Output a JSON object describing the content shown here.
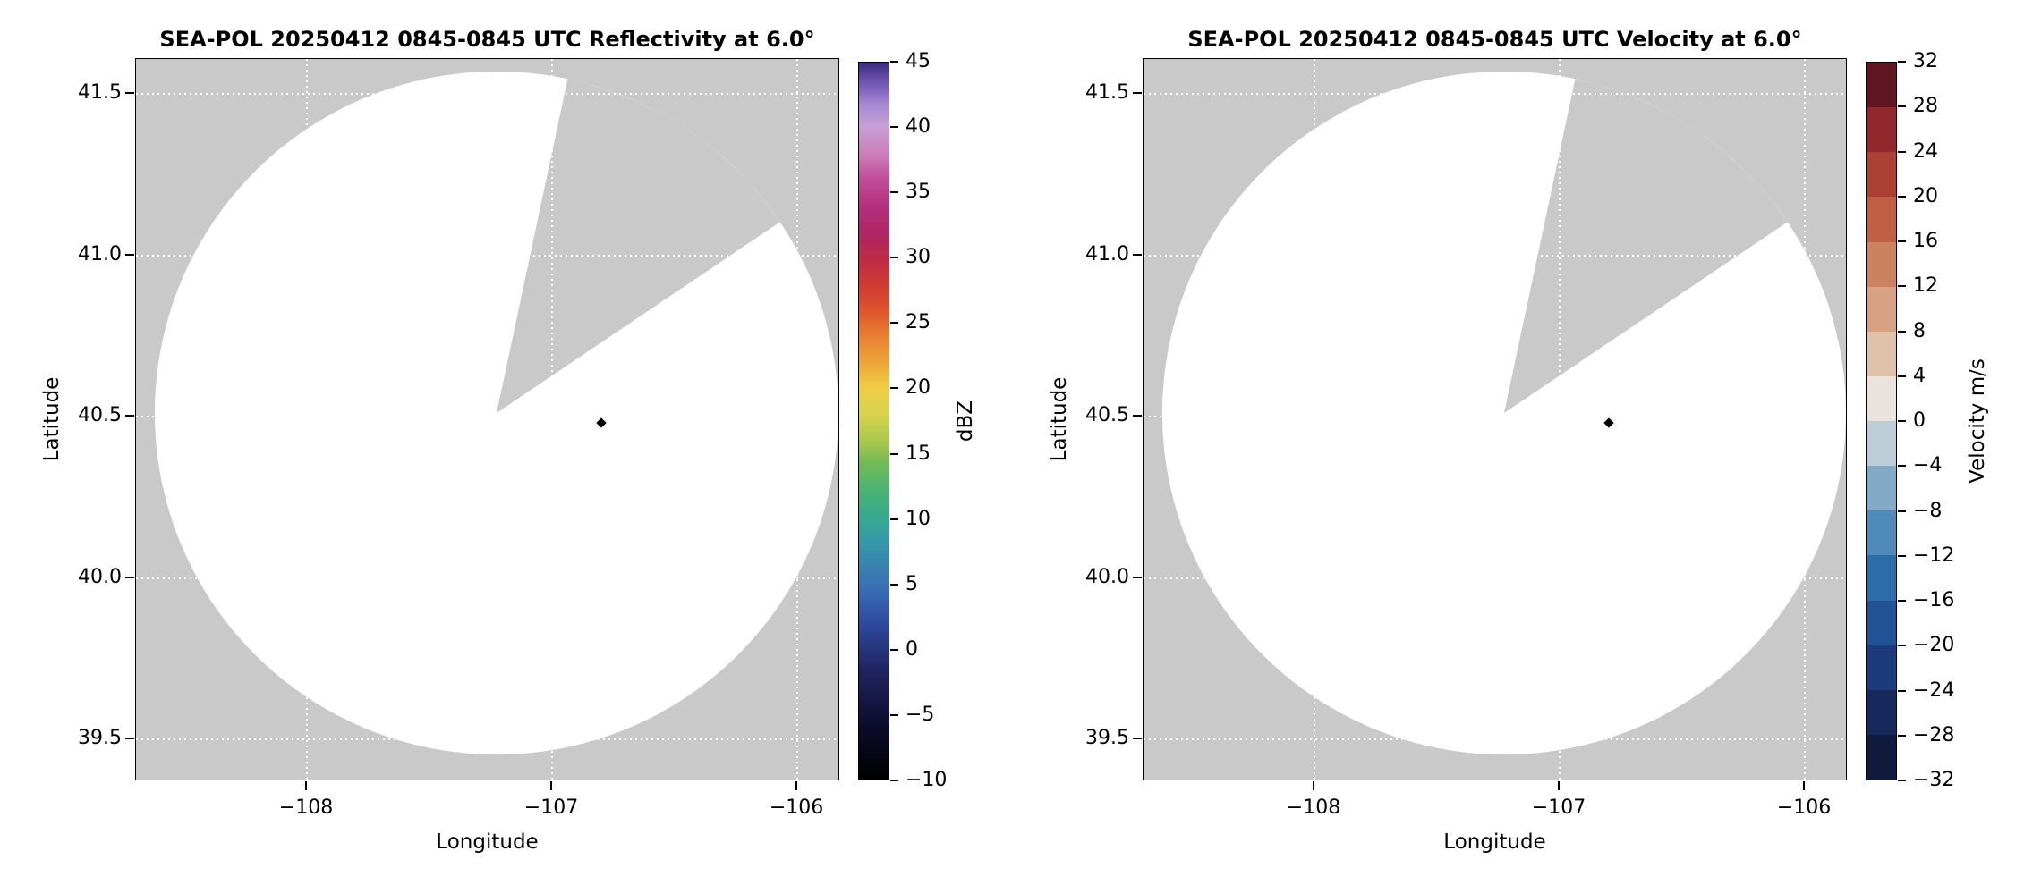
{
  "figure": {
    "background": "#ffffff",
    "nodata_gray": "#c9c9c9",
    "scan_area_white": "#ffffff",
    "grid_color": "#ffffff",
    "text_color": "#000000"
  },
  "chart_data": [
    {
      "type": "heatmap",
      "subtype": "radar-ppi",
      "title": "SEA-POL 20250412 0845-0845 UTC Reflectivity at 6.0°",
      "xlabel": "Longitude",
      "ylabel": "Latitude",
      "xlim": [
        -108.7,
        -105.82
      ],
      "ylim": [
        39.37,
        41.61
      ],
      "x_tick_values": [
        -108,
        -107,
        -106
      ],
      "x_tick_labels": [
        "−108",
        "−107",
        "−106"
      ],
      "y_tick_values": [
        41.5,
        41.0,
        40.5,
        40.0,
        39.5
      ],
      "y_tick_labels": [
        "41.5",
        "41.0",
        "40.5",
        "40.0",
        "39.5"
      ],
      "grid": true,
      "background_nodata_color": "#c9c9c9",
      "scan_area_color": "#ffffff",
      "radar_center": {
        "lon": -107.22,
        "lat": 40.51
      },
      "scan_radius_deg_lat": 1.06,
      "missing_sector_azimuth_deg": {
        "start_cw_from_north": 12,
        "end_cw_from_north": 56
      },
      "marker": {
        "lon": -106.8,
        "lat": 40.48,
        "shape": "diamond",
        "color": "#000000"
      },
      "echoes": [],
      "note": "Scan area blank: no reflectivity echoes above threshold are plotted",
      "colorbar": {
        "label": "dBZ",
        "min": -10,
        "max": 45,
        "style": "continuous",
        "tick_values": [
          45,
          40,
          35,
          30,
          25,
          20,
          15,
          10,
          5,
          0,
          -5,
          -10
        ],
        "tick_labels": [
          "45",
          "40",
          "35",
          "30",
          "25",
          "20",
          "15",
          "10",
          "5",
          "0",
          "−5",
          "−10"
        ],
        "gradient_stops": [
          {
            "p": 0,
            "c": "#000000"
          },
          {
            "p": 7,
            "c": "#0b0b28"
          },
          {
            "p": 15,
            "c": "#20235f"
          },
          {
            "p": 22,
            "c": "#2f4ba0"
          },
          {
            "p": 27,
            "c": "#3a71b5"
          },
          {
            "p": 33,
            "c": "#3797aa"
          },
          {
            "p": 36,
            "c": "#35a794"
          },
          {
            "p": 40,
            "c": "#48b176"
          },
          {
            "p": 44,
            "c": "#70ba57"
          },
          {
            "p": 47,
            "c": "#a6c74f"
          },
          {
            "p": 51,
            "c": "#d9d44e"
          },
          {
            "p": 55,
            "c": "#f0cb44"
          },
          {
            "p": 58,
            "c": "#eda63a"
          },
          {
            "p": 62,
            "c": "#e87e31"
          },
          {
            "p": 65,
            "c": "#e0592d"
          },
          {
            "p": 69,
            "c": "#d03a31"
          },
          {
            "p": 73,
            "c": "#bd2a49"
          },
          {
            "p": 76,
            "c": "#b02563"
          },
          {
            "p": 80,
            "c": "#b52f7d"
          },
          {
            "p": 84,
            "c": "#c24f9b"
          },
          {
            "p": 87,
            "c": "#cd7ab8"
          },
          {
            "p": 91,
            "c": "#c79fd4"
          },
          {
            "p": 94,
            "c": "#a98bd4"
          },
          {
            "p": 97,
            "c": "#7459b5"
          },
          {
            "p": 100,
            "c": "#3a2a80"
          }
        ]
      }
    },
    {
      "type": "heatmap",
      "subtype": "radar-ppi",
      "title": "SEA-POL 20250412 0845-0845 UTC Velocity at 6.0°",
      "xlabel": "Longitude",
      "ylabel": "Latitude",
      "xlim": [
        -108.7,
        -105.82
      ],
      "ylim": [
        39.37,
        41.61
      ],
      "x_tick_values": [
        -108,
        -107,
        -106
      ],
      "x_tick_labels": [
        "−108",
        "−107",
        "−106"
      ],
      "y_tick_values": [
        41.5,
        41.0,
        40.5,
        40.0,
        39.5
      ],
      "y_tick_labels": [
        "41.5",
        "41.0",
        "40.5",
        "40.0",
        "39.5"
      ],
      "grid": true,
      "background_nodata_color": "#c9c9c9",
      "scan_area_color": "#ffffff",
      "radar_center": {
        "lon": -107.22,
        "lat": 40.51
      },
      "scan_radius_deg_lat": 1.06,
      "missing_sector_azimuth_deg": {
        "start_cw_from_north": 12,
        "end_cw_from_north": 56
      },
      "marker": {
        "lon": -106.8,
        "lat": 40.48,
        "shape": "diamond",
        "color": "#000000"
      },
      "echoes": [],
      "note": "Scan area blank: no velocity data above threshold are plotted",
      "colorbar": {
        "label": "Velocity m/s",
        "min": -32,
        "max": 32,
        "style": "stepped",
        "tick_values": [
          32,
          28,
          24,
          20,
          16,
          12,
          8,
          4,
          0,
          -4,
          -8,
          -12,
          -16,
          -20,
          -24,
          -28,
          -32
        ],
        "tick_labels": [
          "32",
          "28",
          "24",
          "20",
          "16",
          "12",
          "8",
          "4",
          "0",
          "−4",
          "−8",
          "−12",
          "−16",
          "−20",
          "−24",
          "−28",
          "−32"
        ],
        "segment_colors_bottom_to_top": [
          "#0f1a3d",
          "#16295c",
          "#1d3a7a",
          "#205295",
          "#2d6ea8",
          "#4f8ab8",
          "#83aac6",
          "#bdcdd8",
          "#e9e2dd",
          "#e0c2ab",
          "#d6a283",
          "#cb8260",
          "#bf6044",
          "#ad4034",
          "#92282c",
          "#601622"
        ]
      }
    }
  ]
}
